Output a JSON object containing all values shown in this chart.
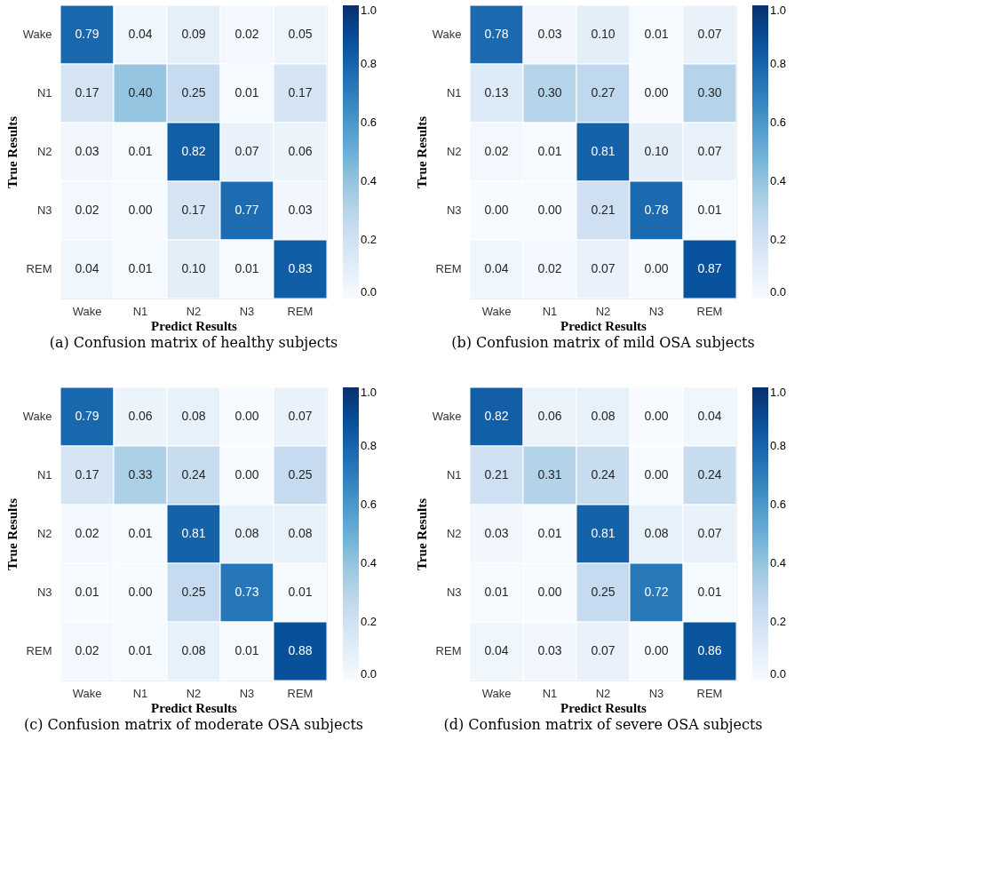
{
  "chart_data": [
    {
      "type": "heatmap",
      "xlabel": "Predict Results",
      "ylabel": "True Results",
      "annotations": [
        "(a) Confusion matrix of healthy subjects"
      ],
      "categories": [
        "Wake",
        "N1",
        "N2",
        "N3",
        "REM"
      ],
      "y_categories": [
        "Wake",
        "N1",
        "N2",
        "N3",
        "REM"
      ],
      "cells": [
        [
          0.79,
          0.04,
          0.09,
          0.02,
          0.05
        ],
        [
          0.17,
          0.4,
          0.25,
          0.01,
          0.17
        ],
        [
          0.03,
          0.01,
          0.82,
          0.07,
          0.06
        ],
        [
          0.02,
          0.0,
          0.17,
          0.77,
          0.03
        ],
        [
          0.04,
          0.01,
          0.1,
          0.01,
          0.83
        ]
      ],
      "cell_labels": [
        [
          "0.79",
          "0.04",
          "0.09",
          "0.02",
          "0.05"
        ],
        [
          "0.17",
          "0.40",
          "0.25",
          "0.01",
          "0.17"
        ],
        [
          "0.03",
          "0.01",
          "0.82",
          "0.07",
          "0.06"
        ],
        [
          "0.02",
          "0.00",
          "0.17",
          "0.77",
          "0.03"
        ],
        [
          "0.04",
          "0.01",
          "0.10",
          "0.01",
          "0.83"
        ]
      ],
      "data_labels": true,
      "clim": [
        0.0,
        1.0
      ],
      "cticks": [
        {
          "value": 0,
          "label": "0.0"
        },
        {
          "value": 0.2,
          "label": "0.2"
        },
        {
          "value": 0.4,
          "label": "0.4"
        },
        {
          "value": 0.6,
          "label": "0.6"
        },
        {
          "value": 0.8,
          "label": "0.8"
        },
        {
          "value": 1,
          "label": "1.0"
        }
      ]
    },
    {
      "type": "heatmap",
      "xlabel": "Predict Results",
      "ylabel": "True Results",
      "annotations": [
        "(b) Confusion matrix of mild OSA subjects"
      ],
      "categories": [
        "Wake",
        "N1",
        "N2",
        "N3",
        "REM"
      ],
      "y_categories": [
        "Wake",
        "N1",
        "N2",
        "N3",
        "REM"
      ],
      "cells": [
        [
          0.78,
          0.03,
          0.1,
          0.01,
          0.07
        ],
        [
          0.13,
          0.3,
          0.27,
          0.0,
          0.3
        ],
        [
          0.02,
          0.01,
          0.81,
          0.1,
          0.07
        ],
        [
          0.0,
          0.0,
          0.21,
          0.78,
          0.01
        ],
        [
          0.04,
          0.02,
          0.07,
          0.0,
          0.87
        ]
      ],
      "cell_labels": [
        [
          "0.78",
          "0.03",
          "0.10",
          "0.01",
          "0.07"
        ],
        [
          "0.13",
          "0.30",
          "0.27",
          "0.00",
          "0.30"
        ],
        [
          "0.02",
          "0.01",
          "0.81",
          "0.10",
          "0.07"
        ],
        [
          "0.00",
          "0.00",
          "0.21",
          "0.78",
          "0.01"
        ],
        [
          "0.04",
          "0.02",
          "0.07",
          "0.00",
          "0.87"
        ]
      ],
      "data_labels": true,
      "clim": [
        0.0,
        1.0
      ],
      "cticks": [
        {
          "value": 0,
          "label": "0.0"
        },
        {
          "value": 0.2,
          "label": "0.2"
        },
        {
          "value": 0.4,
          "label": "0.4"
        },
        {
          "value": 0.6,
          "label": "0.6"
        },
        {
          "value": 0.8,
          "label": "0.8"
        },
        {
          "value": 1,
          "label": "1.0"
        }
      ]
    },
    {
      "type": "heatmap",
      "xlabel": "Predict Results",
      "ylabel": "True Results",
      "annotations": [
        "(c) Confusion matrix of moderate OSA subjects"
      ],
      "categories": [
        "Wake",
        "N1",
        "N2",
        "N3",
        "REM"
      ],
      "y_categories": [
        "Wake",
        "N1",
        "N2",
        "N3",
        "REM"
      ],
      "cells": [
        [
          0.79,
          0.06,
          0.08,
          0.0,
          0.07
        ],
        [
          0.17,
          0.33,
          0.24,
          0.0,
          0.25
        ],
        [
          0.02,
          0.01,
          0.81,
          0.08,
          0.08
        ],
        [
          0.01,
          0.0,
          0.25,
          0.73,
          0.01
        ],
        [
          0.02,
          0.01,
          0.08,
          0.01,
          0.88
        ]
      ],
      "cell_labels": [
        [
          "0.79",
          "0.06",
          "0.08",
          "0.00",
          "0.07"
        ],
        [
          "0.17",
          "0.33",
          "0.24",
          "0.00",
          "0.25"
        ],
        [
          "0.02",
          "0.01",
          "0.81",
          "0.08",
          "0.08"
        ],
        [
          "0.01",
          "0.00",
          "0.25",
          "0.73",
          "0.01"
        ],
        [
          "0.02",
          "0.01",
          "0.08",
          "0.01",
          "0.88"
        ]
      ],
      "data_labels": true,
      "clim": [
        0.0,
        1.0
      ],
      "cticks": [
        {
          "value": 0,
          "label": "0.0"
        },
        {
          "value": 0.2,
          "label": "0.2"
        },
        {
          "value": 0.4,
          "label": "0.4"
        },
        {
          "value": 0.6,
          "label": "0.6"
        },
        {
          "value": 0.8,
          "label": "0.8"
        },
        {
          "value": 1,
          "label": "1.0"
        }
      ]
    },
    {
      "type": "heatmap",
      "xlabel": "Predict Results",
      "ylabel": "True Results",
      "annotations": [
        "(d) Confusion matrix of severe OSA subjects"
      ],
      "categories": [
        "Wake",
        "N1",
        "N2",
        "N3",
        "REM"
      ],
      "y_categories": [
        "Wake",
        "N1",
        "N2",
        "N3",
        "REM"
      ],
      "cells": [
        [
          0.82,
          0.06,
          0.08,
          0.0,
          0.04
        ],
        [
          0.21,
          0.31,
          0.24,
          0.0,
          0.24
        ],
        [
          0.03,
          0.01,
          0.81,
          0.08,
          0.07
        ],
        [
          0.01,
          0.0,
          0.25,
          0.72,
          0.01
        ],
        [
          0.04,
          0.03,
          0.07,
          0.0,
          0.86
        ]
      ],
      "cell_labels": [
        [
          "0.82",
          "0.06",
          "0.08",
          "0.00",
          "0.04"
        ],
        [
          "0.21",
          "0.31",
          "0.24",
          "0.00",
          "0.24"
        ],
        [
          "0.03",
          "0.01",
          "0.81",
          "0.08",
          "0.07"
        ],
        [
          "0.01",
          "0.00",
          "0.25",
          "0.72",
          "0.01"
        ],
        [
          "0.04",
          "0.03",
          "0.07",
          "0.00",
          "0.86"
        ]
      ],
      "data_labels": true,
      "clim": [
        0.0,
        1.0
      ],
      "cticks": [
        {
          "value": 0,
          "label": "0.0"
        },
        {
          "value": 0.2,
          "label": "0.2"
        },
        {
          "value": 0.4,
          "label": "0.4"
        },
        {
          "value": 0.6,
          "label": "0.6"
        },
        {
          "value": 0.8,
          "label": "0.8"
        },
        {
          "value": 1,
          "label": "1.0"
        }
      ]
    }
  ]
}
